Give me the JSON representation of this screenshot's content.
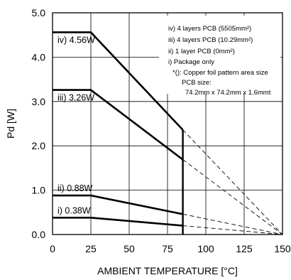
{
  "chart_data": {
    "type": "line",
    "xlabel": "AMBIENT TEMPERATURE [°C]",
    "ylabel": "Pd [W]",
    "xlim": [
      0,
      150
    ],
    "ylim": [
      0,
      5
    ],
    "x_ticks": [
      "0",
      "25",
      "50",
      "75",
      "100",
      "125",
      "150"
    ],
    "y_ticks": [
      "0.0",
      "1.0",
      "2.0",
      "3.0",
      "4.0",
      "5.0"
    ],
    "grid": true,
    "cutoff_x": 85,
    "series": [
      {
        "name": "iv) 4.56W",
        "values": [
          [
            0,
            4.56
          ],
          [
            25,
            4.56
          ],
          [
            85,
            2.36
          ]
        ],
        "extrapolation": [
          [
            85,
            2.36
          ],
          [
            150,
            0
          ]
        ]
      },
      {
        "name": "iii) 3.26W",
        "values": [
          [
            0,
            3.26
          ],
          [
            25,
            3.26
          ],
          [
            85,
            1.69
          ]
        ],
        "extrapolation": [
          [
            85,
            1.69
          ],
          [
            150,
            0
          ]
        ]
      },
      {
        "name": "ii) 0.88W",
        "values": [
          [
            0,
            0.88
          ],
          [
            25,
            0.88
          ],
          [
            85,
            0.46
          ]
        ],
        "extrapolation": [
          [
            85,
            0.46
          ],
          [
            150,
            0
          ]
        ]
      },
      {
        "name": "i) 0.38W",
        "values": [
          [
            0,
            0.38
          ],
          [
            25,
            0.38
          ],
          [
            85,
            0.2
          ]
        ],
        "extrapolation": [
          [
            85,
            0.2
          ],
          [
            150,
            0
          ]
        ]
      }
    ],
    "legend_lines": [
      "iv) 4 layers PCB (5505mm²)",
      "iii) 4 layers PCB (10.29mm²)",
      "ii) 1 layer PCB (0mm²)",
      "i) Package only",
      "*(): Copper foil pattern area size",
      "PCB size:",
      "74.2mm x 74.2mm x 1.6mmt"
    ],
    "legend_placement": "top-right"
  }
}
